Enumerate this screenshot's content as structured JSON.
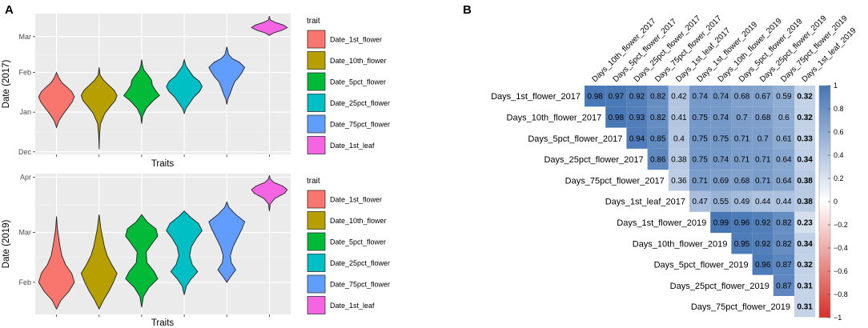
{
  "colors": {
    "Date_1st_flower": "#F8766D",
    "Date_10th_flower": "#B79F00",
    "Date_5pct_flower": "#00BA38",
    "Date_25pct_flower": "#00BFC4",
    "Date_75pct_flower": "#619CFF",
    "Date_1st_leaf": "#F564E3",
    "heat_pos": "#4575b4",
    "heat_neg": "#d73027",
    "heat_mid": "#ffffff"
  },
  "panel_a": {
    "label": "A"
  },
  "panel_b": {
    "label": "B"
  },
  "chart_data": [
    {
      "type": "violin",
      "title": "",
      "xlabel": "Traits",
      "ylabel": "Date (2017)",
      "y_ticks": [
        "Dec",
        "Jan",
        "Feb",
        "Mar"
      ],
      "y_tick_values": [
        0,
        31,
        62,
        90
      ],
      "ylim": [
        -2,
        108
      ],
      "legend_title": "trait",
      "series": [
        {
          "name": "Date_1st_flower",
          "values": [
            [
              19,
              0
            ],
            [
              24,
              0.12
            ],
            [
              29,
              0.35
            ],
            [
              34,
              0.62
            ],
            [
              39,
              0.88
            ],
            [
              43,
              1
            ],
            [
              47,
              0.85
            ],
            [
              51,
              0.55
            ],
            [
              54,
              0.3
            ],
            [
              58,
              0.12
            ],
            [
              62,
              0
            ]
          ]
        },
        {
          "name": "Date_10th_flower",
          "values": [
            [
              2,
              0
            ],
            [
              12,
              0.02
            ],
            [
              22,
              0.08
            ],
            [
              30,
              0.32
            ],
            [
              35,
              0.6
            ],
            [
              40,
              0.9
            ],
            [
              44,
              1
            ],
            [
              48,
              0.85
            ],
            [
              52,
              0.55
            ],
            [
              56,
              0.25
            ],
            [
              60,
              0.05
            ],
            [
              66,
              0
            ]
          ]
        },
        {
          "name": "Date_5pct_flower",
          "values": [
            [
              22,
              0
            ],
            [
              28,
              0.05
            ],
            [
              34,
              0.25
            ],
            [
              40,
              0.65
            ],
            [
              44,
              1
            ],
            [
              48,
              0.78
            ],
            [
              52,
              0.6
            ],
            [
              56,
              0.55
            ],
            [
              60,
              0.35
            ],
            [
              64,
              0.12
            ],
            [
              68,
              0.04
            ],
            [
              72,
              0
            ]
          ]
        },
        {
          "name": "Date_25pct_flower",
          "values": [
            [
              30,
              0
            ],
            [
              34,
              0.1
            ],
            [
              38,
              0.3
            ],
            [
              43,
              0.55
            ],
            [
              47,
              0.85
            ],
            [
              51,
              1
            ],
            [
              55,
              0.85
            ],
            [
              59,
              0.5
            ],
            [
              63,
              0.3
            ],
            [
              67,
              0.1
            ],
            [
              72,
              0
            ]
          ]
        },
        {
          "name": "Date_75pct_flower",
          "values": [
            [
              37,
              0
            ],
            [
              41,
              0.05
            ],
            [
              46,
              0.2
            ],
            [
              50,
              0.3
            ],
            [
              55,
              0.45
            ],
            [
              58,
              0.65
            ],
            [
              62,
              0.85
            ],
            [
              66,
              1
            ],
            [
              70,
              0.7
            ],
            [
              73,
              0.3
            ],
            [
              76,
              0.1
            ],
            [
              79,
              0.05
            ],
            [
              82,
              0
            ]
          ]
        },
        {
          "name": "Date_1st_leaf",
          "values": [
            [
              91,
              0
            ],
            [
              93,
              0.25
            ],
            [
              95,
              0.7
            ],
            [
              97,
              1
            ],
            [
              99,
              0.8
            ],
            [
              101,
              0.35
            ],
            [
              103,
              0.05
            ],
            [
              106,
              0
            ]
          ]
        }
      ]
    },
    {
      "type": "violin",
      "title": "",
      "xlabel": "Traits",
      "ylabel": "Date (2019)",
      "y_ticks": [
        "Feb",
        "Mar",
        "Apr"
      ],
      "y_tick_values": [
        0,
        28,
        59
      ],
      "ylim": [
        -18,
        61
      ],
      "legend_title": "trait",
      "series": [
        {
          "name": "Date_1st_flower",
          "values": [
            [
              -15,
              0
            ],
            [
              -10,
              0.25
            ],
            [
              -5,
              0.7
            ],
            [
              0,
              1
            ],
            [
              5,
              0.85
            ],
            [
              10,
              0.5
            ],
            [
              15,
              0.3
            ],
            [
              20,
              0.2
            ],
            [
              25,
              0.12
            ],
            [
              30,
              0.05
            ],
            [
              37,
              0
            ]
          ]
        },
        {
          "name": "Date_10th_flower",
          "values": [
            [
              -15,
              0
            ],
            [
              -10,
              0.25
            ],
            [
              -5,
              0.55
            ],
            [
              0,
              0.8
            ],
            [
              5,
              1
            ],
            [
              10,
              0.7
            ],
            [
              15,
              0.45
            ],
            [
              20,
              0.3
            ],
            [
              25,
              0.2
            ],
            [
              30,
              0.1
            ],
            [
              38,
              0
            ]
          ]
        },
        {
          "name": "Date_5pct_flower",
          "values": [
            [
              -14,
              0
            ],
            [
              -8,
              0.1
            ],
            [
              -3,
              0.4
            ],
            [
              2,
              0.9
            ],
            [
              6,
              0.7
            ],
            [
              11,
              0.3
            ],
            [
              17,
              0.25
            ],
            [
              22,
              0.6
            ],
            [
              26,
              0.9
            ],
            [
              30,
              0.8
            ],
            [
              34,
              0.3
            ],
            [
              38,
              0
            ]
          ]
        },
        {
          "name": "Date_25pct_flower",
          "values": [
            [
              -7,
              0
            ],
            [
              -2,
              0.12
            ],
            [
              2,
              0.4
            ],
            [
              6,
              0.75
            ],
            [
              10,
              0.45
            ],
            [
              15,
              0.3
            ],
            [
              20,
              0.4
            ],
            [
              25,
              0.7
            ],
            [
              29,
              1
            ],
            [
              33,
              0.8
            ],
            [
              37,
              0.3
            ],
            [
              40,
              0
            ]
          ]
        },
        {
          "name": "Date_75pct_flower",
          "values": [
            [
              0,
              0
            ],
            [
              3,
              0.2
            ],
            [
              7,
              0.5
            ],
            [
              11,
              0.25
            ],
            [
              15,
              0.2
            ],
            [
              20,
              0.35
            ],
            [
              25,
              0.6
            ],
            [
              30,
              0.85
            ],
            [
              34,
              1
            ],
            [
              38,
              0.5
            ],
            [
              42,
              0.12
            ],
            [
              45,
              0
            ]
          ]
        },
        {
          "name": "Date_1st_leaf",
          "values": [
            [
              40,
              0
            ],
            [
              44,
              0.05
            ],
            [
              47,
              0.3
            ],
            [
              50,
              0.85
            ],
            [
              52,
              1
            ],
            [
              54,
              0.75
            ],
            [
              56,
              0.25
            ],
            [
              58,
              0.05
            ],
            [
              60,
              0
            ]
          ]
        }
      ]
    },
    {
      "type": "heatmap",
      "title": "",
      "columns": [
        "Days_10th_flower_2017",
        "Days_5pct_flower_2017",
        "Days_25pct_flower_2017",
        "Days_75pct_flower_2017",
        "Days_1st_leaf_2017",
        "Days_1st_flower_2019",
        "Days_10th_flower_2019",
        "Days_5pct_flower_2019",
        "Days_25pct_flower_2019",
        "Days_75pct_flower_2019",
        "Days_1st_leaf_2019"
      ],
      "rows": [
        "Days_1st_flower_2017",
        "Days_10th_flower_2017",
        "Days_5pct_flower_2017",
        "Days_25pct_flower_2017",
        "Days_75pct_flower_2017",
        "Days_1st_leaf_2017",
        "Days_1st_flower_2019",
        "Days_10th_flower_2019",
        "Days_5pct_flower_2019",
        "Days_25pct_flower_2019",
        "Days_75pct_flower_2019"
      ],
      "values": [
        [
          0.98,
          0.97,
          0.92,
          0.82,
          0.42,
          0.74,
          0.74,
          0.68,
          0.67,
          0.59,
          0.32
        ],
        [
          0.98,
          0.93,
          0.82,
          0.41,
          0.75,
          0.74,
          0.7,
          0.68,
          0.6,
          0.32
        ],
        [
          0.94,
          0.85,
          0.4,
          0.75,
          0.75,
          0.71,
          0.7,
          0.61,
          0.33
        ],
        [
          0.86,
          0.38,
          0.75,
          0.74,
          0.71,
          0.71,
          0.64,
          0.34
        ],
        [
          0.36,
          0.71,
          0.69,
          0.68,
          0.71,
          0.64,
          0.38
        ],
        [
          0.47,
          0.55,
          0.49,
          0.44,
          0.44,
          0.38
        ],
        [
          0.99,
          0.96,
          0.92,
          0.82,
          0.23
        ],
        [
          0.95,
          0.92,
          0.82,
          0.34
        ],
        [
          0.96,
          0.87,
          0.32
        ],
        [
          0.87,
          0.31
        ],
        [
          0.31
        ]
      ],
      "colorbar_range": [
        -1,
        1
      ],
      "colorbar_ticks": [
        "1",
        "0.8",
        "0.6",
        "0.4",
        "0.2",
        "0",
        "−0.2",
        "−0.4",
        "−0.6",
        "−0.8",
        "−1"
      ]
    }
  ]
}
